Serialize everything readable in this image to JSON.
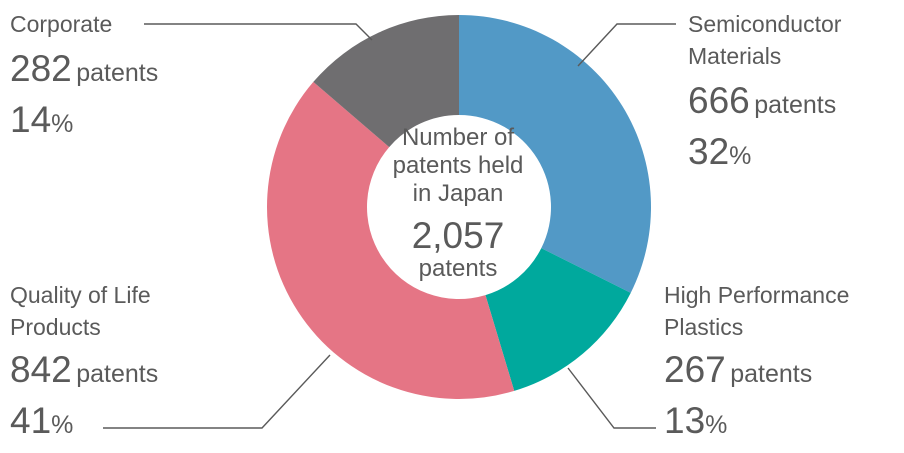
{
  "chart_data": {
    "type": "pie",
    "title": "Number of patents held in Japan",
    "total": {
      "value": "2,057",
      "unit": "patents"
    },
    "center_lines": [
      "Number of",
      "patents held",
      "in Japan"
    ],
    "slices": [
      {
        "name_lines": [
          "Semiconductor",
          "Materials"
        ],
        "value": 666,
        "value_text": "666",
        "unit": "patents",
        "pct": 32,
        "color": "#5299c6"
      },
      {
        "name_lines": [
          "High Performance",
          "Plastics"
        ],
        "value": 267,
        "value_text": "267",
        "unit": "patents",
        "pct": 13,
        "color": "#00a99d"
      },
      {
        "name_lines": [
          "Quality of Life",
          "Products"
        ],
        "value": 842,
        "value_text": "842",
        "unit": "patents",
        "pct": 41,
        "color": "#e57585"
      },
      {
        "name_lines": [
          "Corporate"
        ],
        "value": 282,
        "value_text": "282",
        "unit": "patents",
        "pct": 14,
        "color": "#6f6e70"
      }
    ],
    "pct_symbol": "%"
  }
}
